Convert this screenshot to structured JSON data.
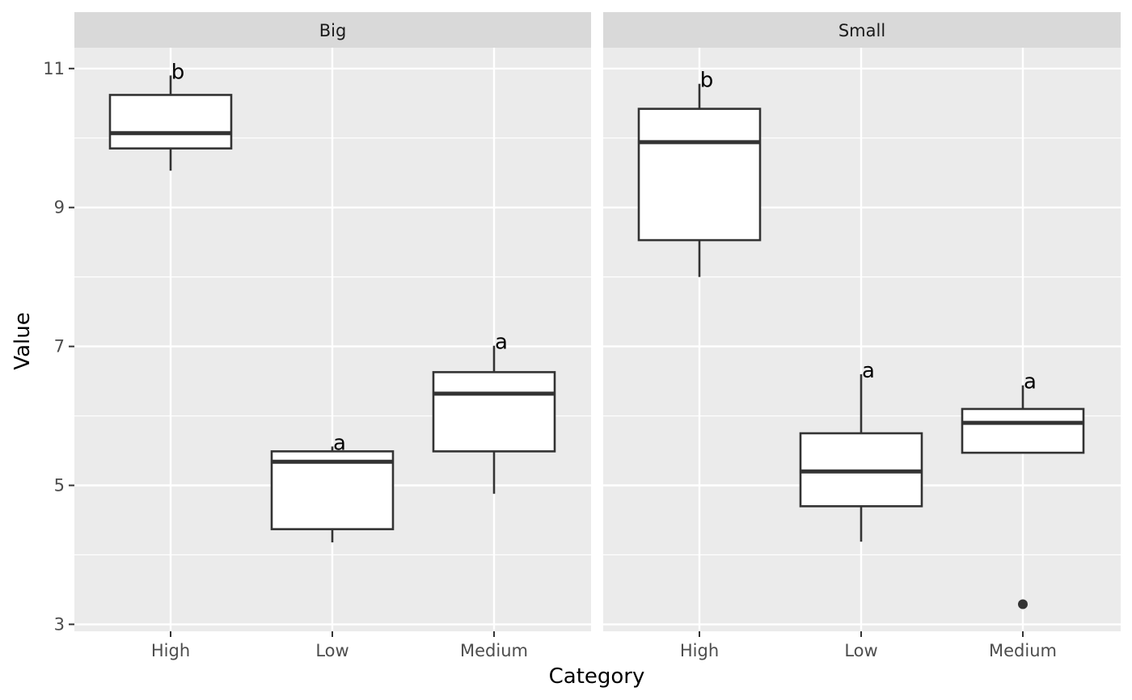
{
  "chart_data": {
    "type": "boxplot",
    "xlabel": "Category",
    "ylabel": "Value",
    "ylim": [
      2.9,
      11.3
    ],
    "yticks": [
      3,
      5,
      7,
      9,
      11
    ],
    "categories": [
      "High",
      "Low",
      "Medium"
    ],
    "grid": true,
    "colors": {
      "panel_bg": "#ebebeb",
      "strip_bg": "#d9d9d9",
      "grid": "#ffffff",
      "box_fill": "#ffffff",
      "box_line": "#333333"
    },
    "panels": [
      {
        "label": "Big",
        "boxes": [
          {
            "category": "High",
            "lower_whisker": 9.53,
            "q1": 9.85,
            "median": 10.07,
            "q3": 10.62,
            "upper_whisker": 10.9,
            "outliers": [],
            "letter": "b"
          },
          {
            "category": "Low",
            "lower_whisker": 4.18,
            "q1": 4.37,
            "median": 5.34,
            "q3": 5.49,
            "upper_whisker": 5.56,
            "outliers": [],
            "letter": "a"
          },
          {
            "category": "Medium",
            "lower_whisker": 4.88,
            "q1": 5.49,
            "median": 6.32,
            "q3": 6.63,
            "upper_whisker": 7.01,
            "outliers": [],
            "letter": "a"
          }
        ]
      },
      {
        "label": "Small",
        "boxes": [
          {
            "category": "High",
            "lower_whisker": 8.0,
            "q1": 8.53,
            "median": 9.94,
            "q3": 10.42,
            "upper_whisker": 10.78,
            "outliers": [],
            "letter": "b"
          },
          {
            "category": "Low",
            "lower_whisker": 4.19,
            "q1": 4.7,
            "median": 5.2,
            "q3": 5.75,
            "upper_whisker": 6.6,
            "outliers": [],
            "letter": "a"
          },
          {
            "category": "Medium",
            "lower_whisker": 5.47,
            "q1": 5.47,
            "median": 5.9,
            "q3": 6.1,
            "upper_whisker": 6.44,
            "outliers": [
              3.29
            ],
            "letter": "a"
          }
        ]
      }
    ]
  }
}
